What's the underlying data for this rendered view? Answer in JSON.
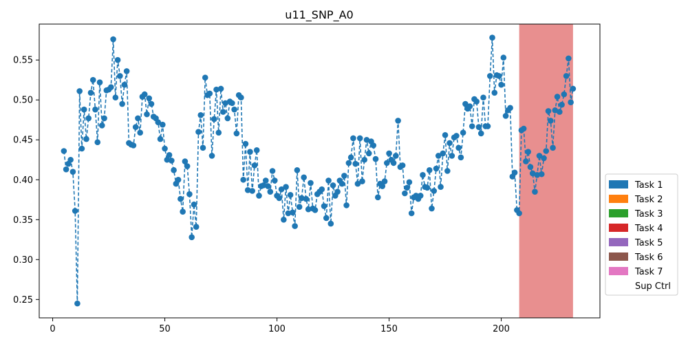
{
  "chart_data": {
    "type": "line",
    "title": "u11_SNP_A0",
    "xlabel": "",
    "ylabel": "",
    "xlim": [
      -6,
      244
    ],
    "ylim": [
      0.227,
      0.595
    ],
    "x_ticks": [
      0,
      50,
      100,
      150,
      200
    ],
    "y_ticks": [
      0.25,
      0.3,
      0.35,
      0.4,
      0.45,
      0.5,
      0.55
    ],
    "x_tick_labels": [
      "0",
      "50",
      "100",
      "150",
      "200"
    ],
    "y_tick_labels": [
      "0.25",
      "0.30",
      "0.35",
      "0.40",
      "0.45",
      "0.50",
      "0.55"
    ],
    "grid": false,
    "legend_position": "right",
    "series": [
      {
        "color": "#1f77b4",
        "style": "dashed-with-markers",
        "x": [
          5,
          6,
          7,
          8,
          9,
          10,
          11,
          12,
          13,
          14,
          15,
          16,
          17,
          18,
          19,
          20,
          21,
          22,
          23,
          24,
          25,
          26,
          27,
          28,
          29,
          30,
          31,
          32,
          33,
          34,
          35,
          36,
          37,
          38,
          39,
          40,
          41,
          42,
          43,
          44,
          45,
          46,
          47,
          48,
          49,
          50,
          51,
          52,
          53,
          54,
          55,
          56,
          57,
          58,
          59,
          60,
          61,
          62,
          63,
          64,
          65,
          66,
          67,
          68,
          69,
          70,
          71,
          72,
          73,
          74,
          75,
          76,
          77,
          78,
          79,
          80,
          81,
          82,
          83,
          84,
          85,
          86,
          87,
          88,
          89,
          90,
          91,
          92,
          93,
          94,
          95,
          96,
          97,
          98,
          99,
          100,
          101,
          102,
          103,
          104,
          105,
          106,
          107,
          108,
          109,
          110,
          111,
          112,
          113,
          114,
          115,
          116,
          117,
          118,
          119,
          120,
          121,
          122,
          123,
          124,
          125,
          126,
          127,
          128,
          129,
          130,
          131,
          132,
          133,
          134,
          135,
          136,
          137,
          138,
          139,
          140,
          141,
          142,
          143,
          144,
          145,
          146,
          147,
          148,
          149,
          150,
          151,
          152,
          153,
          154,
          155,
          156,
          157,
          158,
          159,
          160,
          161,
          162,
          163,
          164,
          165,
          166,
          167,
          168,
          169,
          170,
          171,
          172,
          173,
          174,
          175,
          176,
          177,
          178,
          179,
          180,
          181,
          182,
          183,
          184,
          185,
          186,
          187,
          188,
          189,
          190,
          191,
          192,
          193,
          194,
          195,
          196,
          197,
          198,
          199,
          200,
          201,
          202,
          203,
          204,
          205,
          206,
          207,
          208,
          209,
          210,
          211,
          212,
          213,
          214,
          215,
          216,
          217,
          218,
          219,
          220,
          221,
          222,
          223,
          224,
          225,
          226,
          227,
          228,
          229,
          230,
          231,
          232
        ],
        "y": [
          0.436,
          0.413,
          0.42,
          0.425,
          0.41,
          0.361,
          0.245,
          0.511,
          0.439,
          0.488,
          0.451,
          0.477,
          0.509,
          0.525,
          0.488,
          0.447,
          0.522,
          0.468,
          0.477,
          0.512,
          0.513,
          0.516,
          0.576,
          0.503,
          0.55,
          0.53,
          0.495,
          0.519,
          0.536,
          0.446,
          0.444,
          0.443,
          0.466,
          0.477,
          0.459,
          0.504,
          0.507,
          0.482,
          0.502,
          0.495,
          0.479,
          0.477,
          0.472,
          0.451,
          0.469,
          0.439,
          0.425,
          0.431,
          0.424,
          0.412,
          0.395,
          0.4,
          0.376,
          0.36,
          0.423,
          0.417,
          0.382,
          0.328,
          0.369,
          0.341,
          0.46,
          0.481,
          0.44,
          0.528,
          0.506,
          0.508,
          0.43,
          0.476,
          0.513,
          0.459,
          0.514,
          0.485,
          0.496,
          0.477,
          0.498,
          0.496,
          0.488,
          0.458,
          0.506,
          0.503,
          0.4,
          0.445,
          0.387,
          0.435,
          0.386,
          0.418,
          0.437,
          0.38,
          0.392,
          0.393,
          0.399,
          0.392,
          0.385,
          0.411,
          0.399,
          0.38,
          0.377,
          0.388,
          0.35,
          0.391,
          0.358,
          0.381,
          0.359,
          0.342,
          0.412,
          0.366,
          0.377,
          0.403,
          0.376,
          0.363,
          0.396,
          0.364,
          0.362,
          0.382,
          0.385,
          0.388,
          0.367,
          0.352,
          0.399,
          0.345,
          0.393,
          0.38,
          0.385,
          0.399,
          0.395,
          0.405,
          0.368,
          0.421,
          0.428,
          0.452,
          0.42,
          0.395,
          0.452,
          0.398,
          0.425,
          0.45,
          0.433,
          0.448,
          0.443,
          0.426,
          0.378,
          0.395,
          0.392,
          0.398,
          0.421,
          0.433,
          0.425,
          0.421,
          0.43,
          0.474,
          0.416,
          0.418,
          0.383,
          0.39,
          0.397,
          0.358,
          0.378,
          0.38,
          0.376,
          0.38,
          0.406,
          0.391,
          0.39,
          0.412,
          0.364,
          0.386,
          0.414,
          0.43,
          0.391,
          0.433,
          0.456,
          0.411,
          0.446,
          0.43,
          0.453,
          0.455,
          0.44,
          0.428,
          0.459,
          0.495,
          0.489,
          0.492,
          0.467,
          0.501,
          0.498,
          0.466,
          0.458,
          0.503,
          0.467,
          0.467,
          0.53,
          0.578,
          0.509,
          0.531,
          0.53,
          0.519,
          0.553,
          0.48,
          0.487,
          0.49,
          0.404,
          0.409,
          0.362,
          0.358,
          0.462,
          0.464,
          0.423,
          0.435,
          0.416,
          0.408,
          0.385,
          0.406,
          0.43,
          0.407,
          0.427,
          0.436,
          0.486,
          0.474,
          0.44,
          0.487,
          0.504,
          0.485,
          0.494,
          0.507,
          0.53,
          0.552,
          0.497,
          0.514
        ]
      }
    ],
    "shaded_regions": [
      {
        "x0": 208,
        "x1": 232,
        "color": "#e88f8f"
      }
    ],
    "legend": {
      "entries": [
        {
          "label": "Task 1",
          "color": "#1f77b4"
        },
        {
          "label": "Task 2",
          "color": "#ff7f0e"
        },
        {
          "label": "Task 3",
          "color": "#2ca02c"
        },
        {
          "label": "Task 4",
          "color": "#d62728"
        },
        {
          "label": "Task 5",
          "color": "#9467bd"
        },
        {
          "label": "Task 6",
          "color": "#8c564b"
        },
        {
          "label": "Task 7",
          "color": "#e377c2"
        },
        {
          "label": "Sup Ctrl",
          "color": "#ffffff"
        }
      ]
    }
  }
}
